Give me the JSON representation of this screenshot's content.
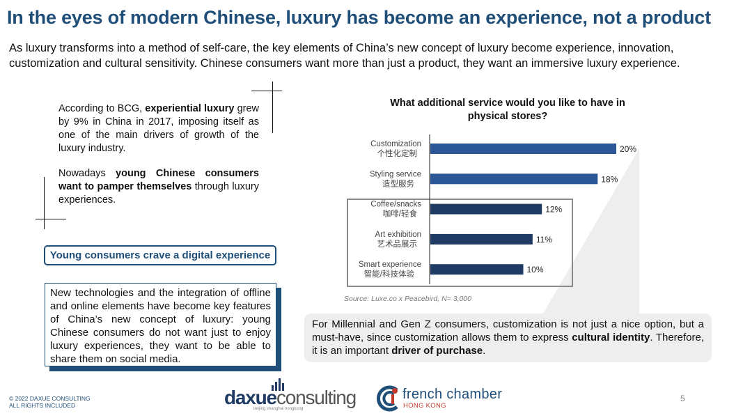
{
  "header": {
    "title": "In the eyes of modern Chinese, luxury has become an experience, not a product",
    "subtitle": "As luxury transforms into a method of self-care, the key elements of China’s new concept of luxury become experience, innovation, customization and cultural sensitivity. Chinese consumers want more than just a product, they want an immersive luxury experience."
  },
  "left_text": {
    "p1_a": "According to BCG, ",
    "p1_bold": "experiential luxury",
    "p1_b": " grew by 9% in China in 2017, imposing itself as one of the main drivers of growth of the luxury industry.",
    "p2_a": "Nowadays ",
    "p2_bold": "young Chinese consumers want to pamper themselves",
    "p2_b": " through luxury experiences."
  },
  "digital_pill": "Young consumers crave a digital experience",
  "digital_box": "New technologies and the integration of offline and online elements have become key features of China’s new concept of luxury: young Chinese consumers do not want just to enjoy luxury experiences, they want to be able to share them on social media.",
  "chart_data": {
    "type": "bar",
    "orientation": "horizontal",
    "title": "What additional service would you like to have in physical stores?",
    "categories": [
      {
        "en": "Customization",
        "zh": "个性化定制"
      },
      {
        "en": "Styling service",
        "zh": "造型服务"
      },
      {
        "en": "Coffee/snacks",
        "zh": "咖啡/轻食"
      },
      {
        "en": "Art exhibition",
        "zh": "艺术品展示"
      },
      {
        "en": "Smart experience",
        "zh": "智能/科技体验"
      }
    ],
    "values": [
      20,
      18,
      12,
      11,
      10
    ],
    "value_suffix": "%",
    "highlighted": [
      "Coffee/snacks",
      "Art exhibition",
      "Smart experience"
    ],
    "xlim": [
      0,
      22
    ],
    "bar_color": "#2b5797",
    "bar_color_dark": "#1f3b63"
  },
  "source": "Source: Luxe.co x Peacebird, N= 3,000",
  "callout": {
    "a": "For Millennial and Gen Z consumers, customization is not just a nice option, but a must-have, since customization allows them to express ",
    "bold1": "cultural identity",
    "b": ". Therefore, it is an important ",
    "bold2": "driver of purchase",
    "c": "."
  },
  "footer": {
    "copyright_line1": "© 2022 DAXUE CONSULTING",
    "copyright_line2": "ALL RIGHTS INCLUDED",
    "page_number": "5",
    "logo_daxue_a": "daxue",
    "logo_daxue_b": "consulting",
    "logo_daxue_sub": "beijing shanghai hongkong",
    "logo_fcc_1": "french chamber",
    "logo_fcc_2": "HONG KONG"
  },
  "colors": {
    "brand_blue": "#1f4e79",
    "callout_bg": "#eeeeee"
  }
}
